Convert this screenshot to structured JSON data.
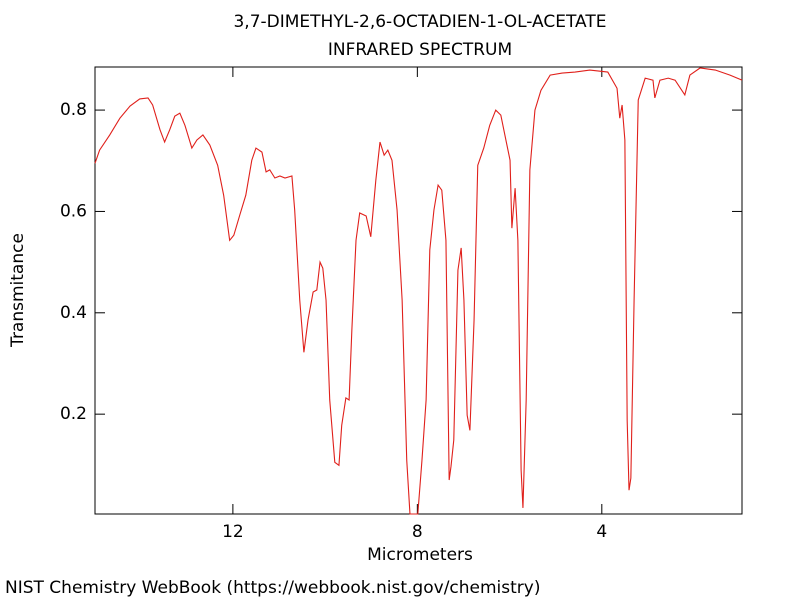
{
  "chart_data": {
    "type": "line",
    "title": "3,7-DIMETHYL-2,6-OCTADIEN-1-OL-ACETATE",
    "subtitle": "INFRARED SPECTRUM",
    "x_label": "Micrometers",
    "y_label": "Transmitance",
    "source": "NIST Chemistry WebBook (https://webbook.nist.gov/chemistry)",
    "xlim": [
      14.99,
      0.96
    ],
    "ylim": [
      0.003,
      0.885
    ],
    "xticks": [
      12,
      8,
      4
    ],
    "yticks": [
      0.2,
      0.4,
      0.6,
      0.8
    ],
    "grid": false,
    "series": [
      {
        "color": "#e0201b",
        "x": [
          14.99,
          14.89,
          14.67,
          14.45,
          14.23,
          14.02,
          13.84,
          13.74,
          13.58,
          13.48,
          13.37,
          13.26,
          13.15,
          13.04,
          12.89,
          12.78,
          12.65,
          12.5,
          12.33,
          12.2,
          12.07,
          11.98,
          11.85,
          11.72,
          11.59,
          11.5,
          11.37,
          11.28,
          11.2,
          11.09,
          10.98,
          10.87,
          10.72,
          10.66,
          10.55,
          10.46,
          10.37,
          10.26,
          10.18,
          10.11,
          10.05,
          9.98,
          9.9,
          9.79,
          9.7,
          9.64,
          9.55,
          9.48,
          9.42,
          9.33,
          9.25,
          9.11,
          9.01,
          8.9,
          8.81,
          8.72,
          8.64,
          8.55,
          8.44,
          8.33,
          8.23,
          8.16,
          7.99,
          7.9,
          7.81,
          7.73,
          7.64,
          7.55,
          7.47,
          7.38,
          7.31,
          7.27,
          7.21,
          7.12,
          7.05,
          6.99,
          6.92,
          6.86,
          6.77,
          6.69,
          6.56,
          6.43,
          6.3,
          6.19,
          6.08,
          5.99,
          5.95,
          5.88,
          5.82,
          5.75,
          5.71,
          5.64,
          5.56,
          5.45,
          5.32,
          5.12,
          4.86,
          4.58,
          4.26,
          3.87,
          3.67,
          3.61,
          3.56,
          3.5,
          3.45,
          3.41,
          3.37,
          3.3,
          3.21,
          3.06,
          2.89,
          2.85,
          2.74,
          2.56,
          2.41,
          2.2,
          2.09,
          1.87,
          1.54,
          1.22,
          0.96
        ],
        "values": [
          0.695,
          0.721,
          0.751,
          0.784,
          0.808,
          0.822,
          0.824,
          0.81,
          0.761,
          0.737,
          0.761,
          0.788,
          0.794,
          0.77,
          0.725,
          0.741,
          0.751,
          0.731,
          0.691,
          0.632,
          0.543,
          0.553,
          0.593,
          0.632,
          0.701,
          0.725,
          0.717,
          0.678,
          0.682,
          0.666,
          0.67,
          0.666,
          0.67,
          0.603,
          0.425,
          0.322,
          0.386,
          0.441,
          0.445,
          0.5,
          0.488,
          0.425,
          0.228,
          0.105,
          0.099,
          0.178,
          0.232,
          0.228,
          0.366,
          0.543,
          0.597,
          0.591,
          0.55,
          0.662,
          0.737,
          0.711,
          0.721,
          0.701,
          0.603,
          0.425,
          0.109,
          0.003,
          0.003,
          0.109,
          0.228,
          0.524,
          0.603,
          0.652,
          0.642,
          0.543,
          0.07,
          0.097,
          0.149,
          0.484,
          0.528,
          0.425,
          0.198,
          0.168,
          0.386,
          0.691,
          0.725,
          0.77,
          0.8,
          0.79,
          0.741,
          0.701,
          0.567,
          0.646,
          0.543,
          0.09,
          0.015,
          0.228,
          0.682,
          0.8,
          0.839,
          0.869,
          0.873,
          0.875,
          0.879,
          0.875,
          0.843,
          0.784,
          0.81,
          0.741,
          0.188,
          0.05,
          0.074,
          0.425,
          0.82,
          0.863,
          0.859,
          0.824,
          0.859,
          0.863,
          0.859,
          0.83,
          0.869,
          0.883,
          0.879,
          0.869,
          0.859
        ]
      }
    ]
  }
}
